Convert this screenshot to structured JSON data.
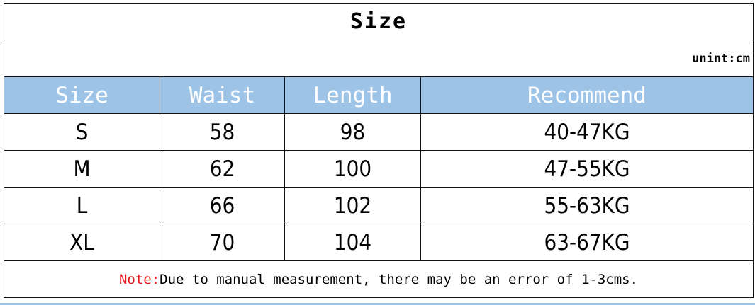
{
  "title": "Size",
  "unit": "unint:cm",
  "colors": {
    "header_bg": "#9dc3e6",
    "note_label": "#e8141b"
  },
  "columns": [
    "Size",
    "Waist",
    "Length",
    "Recommend"
  ],
  "rows": [
    [
      "S",
      "58",
      "98",
      "40-47KG"
    ],
    [
      "M",
      "62",
      "100",
      "47-55KG"
    ],
    [
      "L",
      "66",
      "102",
      "55-63KG"
    ],
    [
      "XL",
      "70",
      "104",
      "63-67KG"
    ]
  ],
  "note": {
    "label": "Note:",
    "text": "Due to manual measurement, there may be an error of 1-3cms."
  }
}
